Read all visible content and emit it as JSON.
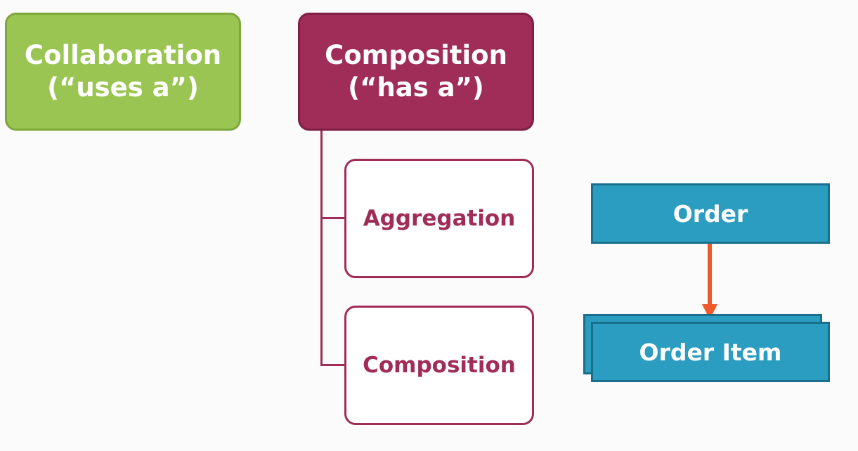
{
  "collaboration": {
    "title": "Collaboration",
    "subtitle": "(“uses a”)"
  },
  "composition_header": {
    "title": "Composition",
    "subtitle": "(“has a”)"
  },
  "children": {
    "aggregation": "Aggregation",
    "composition": "Composition"
  },
  "example": {
    "order": "Order",
    "order_item": "Order Item"
  },
  "colors": {
    "green": "#9ac553",
    "maroon": "#a02c58",
    "blue": "#2b9dc0",
    "arrow": "#ef5a2b"
  }
}
